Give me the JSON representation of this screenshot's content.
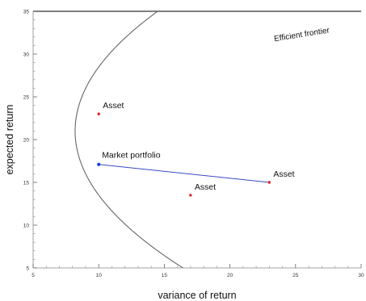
{
  "chart_data": {
    "type": "scatter",
    "title": "",
    "xlabel": "variance of return",
    "ylabel": "expected return",
    "xlim": [
      5,
      30
    ],
    "ylim": [
      5,
      35
    ],
    "xticks": [
      5,
      10,
      15,
      20,
      25,
      30
    ],
    "yticks": [
      5,
      10,
      15,
      20,
      25,
      30,
      35
    ],
    "xtick_labels": [
      "5",
      "10",
      "15",
      "20",
      "25",
      "30"
    ],
    "ytick_labels": [
      "5",
      "10",
      "15",
      "20",
      "25",
      "30",
      "35"
    ],
    "grid": false,
    "frontier": {
      "label": "Efficient frontier",
      "vertex": {
        "x": 8.2,
        "y": 21.0
      },
      "a": 0.0321,
      "label_at": {
        "x": 25.5,
        "y": 32.0
      },
      "color": "#666666"
    },
    "market_portfolio": {
      "label": "Market portfolio",
      "x": 10.0,
      "y": 17.1,
      "color": "#1a3fd6"
    },
    "assets": [
      {
        "label": "Asset",
        "x": 10.0,
        "y": 23.0,
        "color": "#e02020"
      },
      {
        "label": "Asset",
        "x": 17.0,
        "y": 13.5,
        "color": "#e02020"
      },
      {
        "label": "Asset",
        "x": 23.0,
        "y": 15.0,
        "color": "#e02020"
      }
    ],
    "connector": {
      "from": {
        "x": 10.0,
        "y": 17.1
      },
      "to": {
        "x": 23.0,
        "y": 15.0
      },
      "color": "#3a48c4"
    }
  }
}
